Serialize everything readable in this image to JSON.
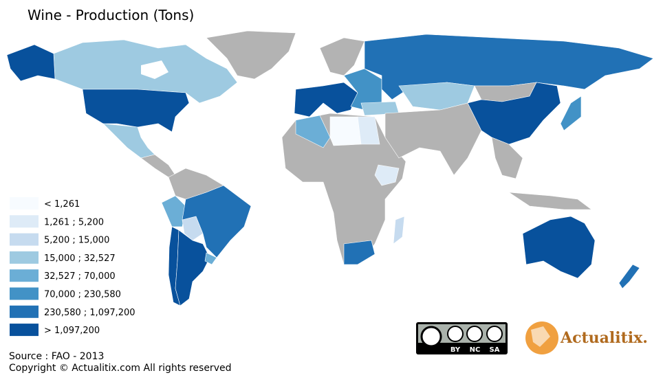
{
  "title": "Wine - Production (Tons)",
  "legend": [
    {
      "label": "< 1,261",
      "color": "#f7fbff"
    },
    {
      "label": "1,261 ; 5,200",
      "color": "#deebf7"
    },
    {
      "label": "5,200 ; 15,000",
      "color": "#c6dbef"
    },
    {
      "label": "15,000 ; 32,527",
      "color": "#9ecae1"
    },
    {
      "label": "32,527 ; 70,000",
      "color": "#6baed6"
    },
    {
      "label": "70,000 ; 230,580",
      "color": "#4292c6"
    },
    {
      "label": "230,580 ; 1,097,200",
      "color": "#2171b5"
    },
    {
      "label": "> 1,097,200",
      "color": "#08519c"
    }
  ],
  "source": "Source : FAO - 2013",
  "copyright": "Copyright © Actualitix.com All rights reserved",
  "license_badges": [
    "BY",
    "NC",
    "SA"
  ],
  "brand": "Actualitix."
}
